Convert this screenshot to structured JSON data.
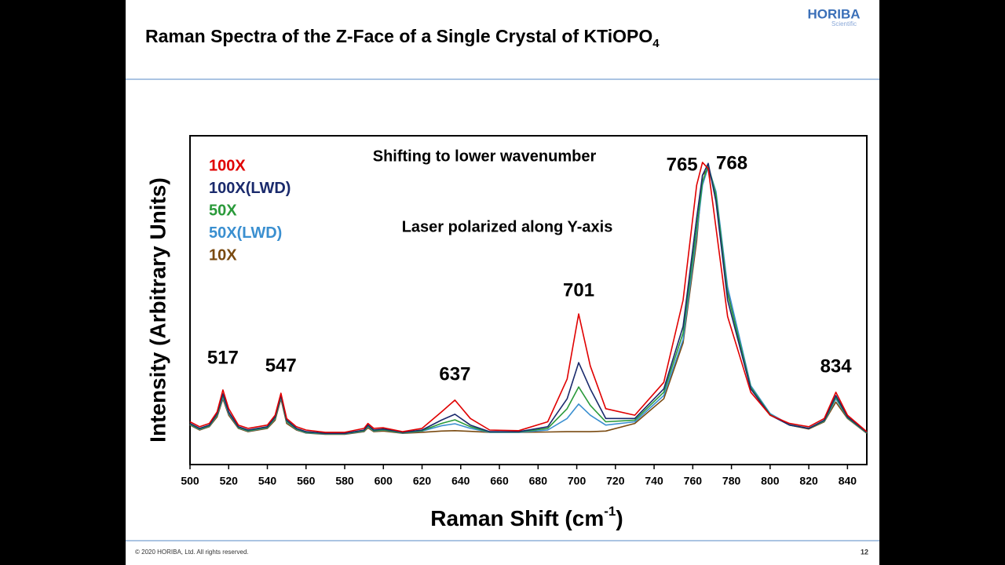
{
  "header": {
    "logo": "HORIBA",
    "logo_sub": "Scientific"
  },
  "footer": {
    "copyright": "© 2020 HORIBA, Ltd. All rights reserved.",
    "page": "12"
  },
  "chart_data": {
    "type": "line",
    "title": "Raman Spectra of the Z-Face of a Single Crystal of KTiOPO",
    "title_subscript": "4",
    "xlabel": "Raman Shift (cm",
    "xlabel_superscript": "-1",
    "xlabel_end": ")",
    "ylabel": "Intensity (Arbitrary Units)",
    "annotations": [
      "Shifting to lower wavenumber",
      "Laser polarized along Y-axis"
    ],
    "peak_labels": [
      517,
      547,
      637,
      701,
      765,
      768,
      834
    ],
    "xlim": [
      500,
      850
    ],
    "ylim": [
      0,
      100
    ],
    "xticks": [
      500,
      520,
      540,
      560,
      580,
      600,
      620,
      640,
      660,
      680,
      700,
      720,
      740,
      760,
      780,
      800,
      820,
      840
    ],
    "x": [
      500,
      505,
      510,
      514,
      517,
      520,
      525,
      530,
      540,
      544,
      547,
      550,
      555,
      560,
      570,
      580,
      590,
      592,
      595,
      600,
      610,
      620,
      630,
      637,
      645,
      655,
      670,
      685,
      695,
      701,
      707,
      715,
      730,
      745,
      755,
      762,
      765,
      768,
      772,
      778,
      790,
      800,
      810,
      820,
      828,
      834,
      840,
      850
    ],
    "series": [
      {
        "name": "100X",
        "color": "#e00000",
        "values": [
          13,
          11.5,
          12.5,
          16,
          22.7,
          17,
          12,
          11,
          12,
          15,
          21.7,
          14,
          11.5,
          10.5,
          9.8,
          9.8,
          11,
          12.5,
          11,
          11.2,
          10,
          11,
          16,
          19.6,
          14,
          10.5,
          10.3,
          13,
          26,
          45.8,
          30,
          17,
          15,
          25,
          50,
          85,
          91.9,
          90,
          72,
          45,
          22,
          15,
          12.5,
          11.5,
          14,
          22,
          15,
          10
        ]
      },
      {
        "name": "100X(LWD)",
        "color": "#1a2a6c",
        "values": [
          12.5,
          11,
          12,
          15.5,
          21.5,
          16,
          11.5,
          10.5,
          11.5,
          14.5,
          21,
          13.5,
          11,
          10,
          9.5,
          9.5,
          10.5,
          12,
          10.5,
          10.8,
          9.8,
          10.5,
          13.5,
          15.3,
          12,
          10,
          10,
          11.5,
          20,
          31,
          23,
          14,
          14,
          23,
          42,
          75,
          88,
          91.6,
          80,
          50,
          23,
          15,
          12,
          11,
          13.5,
          21,
          14.5,
          9.8
        ]
      },
      {
        "name": "50X",
        "color": "#2a9a3a",
        "values": [
          12.3,
          10.8,
          11.8,
          15.2,
          21,
          15.8,
          11.3,
          10.3,
          11.3,
          14.2,
          20.8,
          13.2,
          10.8,
          9.8,
          9.4,
          9.4,
          10.3,
          11.8,
          10.3,
          10.6,
          9.7,
          10.3,
          12.5,
          13.6,
          11.5,
          9.9,
          9.9,
          11,
          17,
          23.6,
          18,
          13,
          13.5,
          22,
          40,
          72,
          86,
          91,
          82,
          52,
          23.5,
          15.2,
          12,
          11,
          13.3,
          20.5,
          14.3,
          9.7
        ]
      },
      {
        "name": "50X(LWD)",
        "color": "#3a8fd0",
        "values": [
          12.2,
          10.7,
          11.7,
          15,
          20.5,
          15.5,
          11.2,
          10.2,
          11.2,
          14,
          20.5,
          13,
          10.7,
          9.7,
          9.3,
          9.3,
          10.2,
          11.6,
          10.2,
          10.5,
          9.6,
          10.2,
          11.8,
          12.4,
          11,
          9.8,
          9.8,
          10.5,
          14,
          18.4,
          15,
          12,
          13,
          21,
          38,
          70,
          85,
          90.5,
          83,
          54,
          24,
          15.5,
          12.2,
          11,
          13.2,
          20,
          14.2,
          9.6
        ]
      },
      {
        "name": "10X",
        "color": "#7a4a10",
        "values": [
          12,
          10.5,
          11.5,
          14.5,
          20,
          15,
          11,
          10,
          11,
          13.5,
          20,
          12.5,
          10.5,
          9.6,
          9.2,
          9.2,
          10,
          11.2,
          10,
          10.2,
          9.5,
          9.8,
          10.2,
          10.3,
          10.1,
          9.8,
          9.8,
          9.9,
          10,
          10,
          10,
          10.2,
          12.5,
          20,
          37,
          68,
          88,
          90,
          82,
          53,
          23.5,
          15.2,
          12,
          10.8,
          13,
          19,
          14,
          9.5
        ]
      }
    ]
  }
}
